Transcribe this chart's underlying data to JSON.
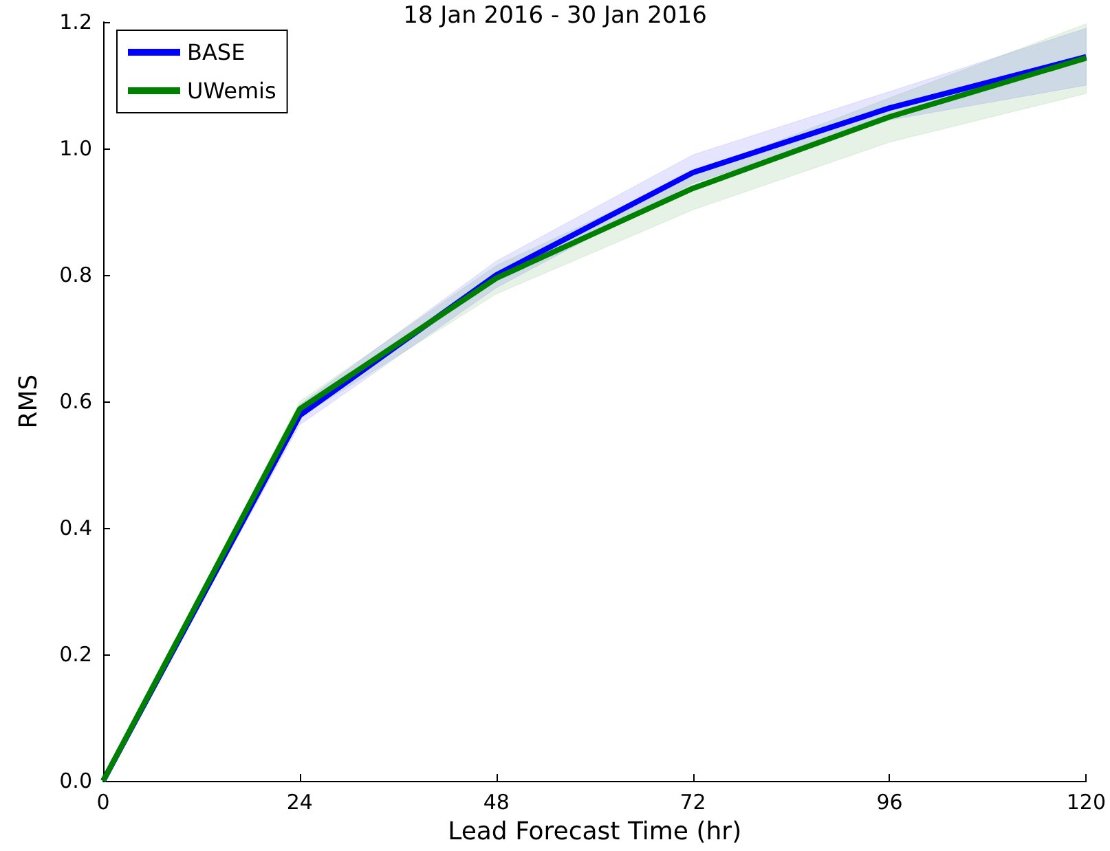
{
  "chart_data": {
    "type": "line",
    "title": "18 Jan 2016 - 30 Jan 2016",
    "xlabel": "Lead Forecast Time (hr)",
    "ylabel": "RMS",
    "x": [
      0,
      24,
      48,
      72,
      96,
      120
    ],
    "series": [
      {
        "name": "BASE",
        "color": "#0000ff",
        "values": [
          0,
          0.578,
          0.8,
          0.962,
          1.064,
          1.145
        ],
        "lower": [
          0,
          0.563,
          0.78,
          0.945,
          1.045,
          1.1
        ],
        "upper": [
          0,
          0.595,
          0.822,
          0.99,
          1.09,
          1.19
        ]
      },
      {
        "name": "UWemis",
        "color": "#008000",
        "values": [
          0,
          0.588,
          0.795,
          0.937,
          1.05,
          1.143
        ],
        "lower": [
          0,
          0.575,
          0.77,
          0.903,
          1.01,
          1.087
        ],
        "upper": [
          0,
          0.6,
          0.815,
          0.96,
          1.08,
          1.197
        ]
      }
    ],
    "xlim": [
      0,
      120
    ],
    "xticks": [
      0,
      24,
      48,
      72,
      96,
      120
    ],
    "ylim": [
      0,
      1.2
    ],
    "yticks": [
      {
        "value": 0,
        "label": "0.0"
      },
      0.2,
      0.4,
      0.6,
      0.8,
      {
        "value": 1,
        "label": "1.0"
      },
      1.2
    ],
    "grid": false,
    "legend": "top left",
    "marker": "none",
    "line_style": "solid"
  }
}
